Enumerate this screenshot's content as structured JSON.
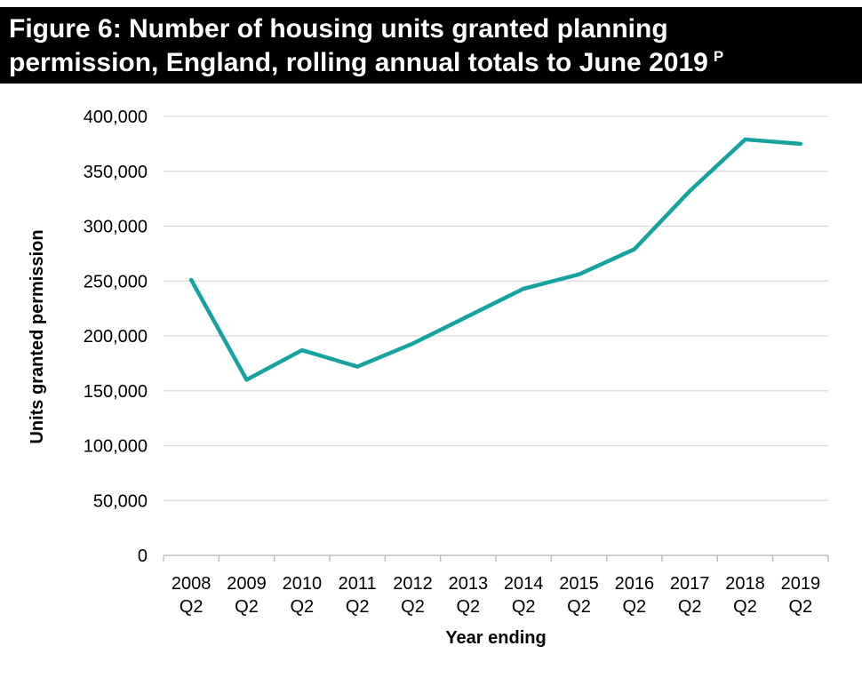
{
  "title": {
    "line1": "Figure 6:  Number of housing units granted planning",
    "line2": "permission, England, rolling annual totals to June 2019",
    "superscript": "P"
  },
  "chart_data": {
    "type": "line",
    "xlabel": "Year ending",
    "ylabel": "Units granted permission",
    "categories": [
      [
        "2008",
        "Q2"
      ],
      [
        "2009",
        "Q2"
      ],
      [
        "2010",
        "Q2"
      ],
      [
        "2011",
        "Q2"
      ],
      [
        "2012",
        "Q2"
      ],
      [
        "2013",
        "Q2"
      ],
      [
        "2014",
        "Q2"
      ],
      [
        "2015",
        "Q2"
      ],
      [
        "2016",
        "Q2"
      ],
      [
        "2017",
        "Q2"
      ],
      [
        "2018",
        "Q2"
      ],
      [
        "2019",
        "Q2"
      ]
    ],
    "series": [
      {
        "color": "#17A2A2",
        "values": [
          251000,
          160000,
          187000,
          172000,
          193000,
          218000,
          243000,
          256000,
          279000,
          332000,
          379000,
          375000
        ]
      }
    ],
    "ylim": [
      0,
      400000
    ],
    "yticks": [
      0,
      50000,
      100000,
      150000,
      200000,
      250000,
      300000,
      350000,
      400000
    ],
    "ytick_labels": [
      "0",
      "50,000",
      "100,000",
      "150,000",
      "200,000",
      "250,000",
      "300,000",
      "350,000",
      "400,000"
    ],
    "grid": true,
    "legend": "none"
  }
}
